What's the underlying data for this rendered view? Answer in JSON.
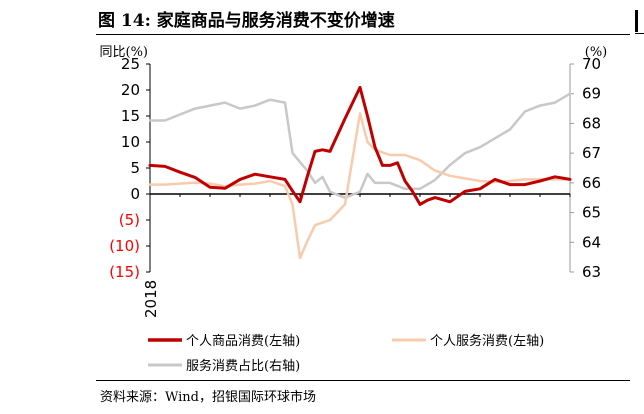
{
  "title": "图 14: 家庭商品与服务消费不变价增速",
  "source": "资料来源：Wind，招银国际环球市场",
  "chart_data": {
    "type": "line",
    "left_axis": {
      "unit_label": "同比(%)",
      "ylim": [
        -15,
        25
      ],
      "ticks": [
        25,
        20,
        15,
        10,
        5,
        0,
        -5,
        -10,
        -15
      ],
      "tick_labels": [
        "25",
        "20",
        "15",
        "10",
        "5",
        "0",
        "(5)",
        "(10)",
        "(15)"
      ]
    },
    "right_axis": {
      "unit_label": "(%)",
      "ylim": [
        63,
        70
      ],
      "ticks": [
        70,
        69,
        68,
        67,
        66,
        65,
        64,
        63
      ],
      "tick_labels": [
        "70",
        "69",
        "68",
        "67",
        "66",
        "65",
        "64",
        "63"
      ]
    },
    "x_label": "2018",
    "x_range": [
      0,
      56
    ],
    "series": [
      {
        "name": "个人商品消费(左轴)",
        "axis": "left",
        "color": "#C00000",
        "width": 3,
        "x": [
          0,
          2,
          4,
          6,
          8,
          10,
          12,
          14,
          16,
          18,
          19,
          20,
          21,
          22,
          23,
          24,
          26,
          28,
          29,
          30,
          31,
          32,
          33,
          34,
          35,
          36,
          37,
          38,
          40,
          42,
          44,
          46,
          48,
          50,
          52,
          54,
          56
        ],
        "values": [
          5.5,
          5.3,
          4.2,
          3.2,
          1.3,
          1.1,
          2.8,
          3.8,
          3.3,
          2.8,
          0.6,
          -1.5,
          3.5,
          8.2,
          8.5,
          8.2,
          14.5,
          20.5,
          15,
          9,
          5.5,
          5.5,
          6.0,
          2.5,
          0.5,
          -2.0,
          -1.2,
          -0.7,
          -1.5,
          0.5,
          1.0,
          2.8,
          1.8,
          1.8,
          2.5,
          3.3,
          2.8
        ]
      },
      {
        "name": "个人服务消费(左轴)",
        "axis": "left",
        "color": "#F8CBAD",
        "width": 2.5,
        "x": [
          0,
          2,
          4,
          6,
          8,
          10,
          12,
          14,
          16,
          18,
          19,
          20,
          21,
          22,
          23,
          24,
          26,
          28,
          29,
          30,
          32,
          34,
          36,
          38,
          40,
          42,
          44,
          46,
          48,
          50,
          52,
          54,
          56
        ],
        "values": [
          1.8,
          1.8,
          2.0,
          2.2,
          2.0,
          1.5,
          1.8,
          2.0,
          2.5,
          1.5,
          -2.0,
          -12.3,
          -9.0,
          -6.0,
          -5.5,
          -5.0,
          -2.0,
          15.5,
          10.0,
          8.5,
          7.5,
          7.5,
          6.5,
          4.5,
          3.5,
          3.0,
          2.5,
          2.3,
          2.5,
          2.8,
          2.8,
          2.8,
          2.8
        ]
      },
      {
        "name": "服务消费占比(右轴)",
        "axis": "right",
        "color": "#C8C8C8",
        "width": 2.5,
        "x": [
          0,
          2,
          4,
          6,
          8,
          10,
          12,
          14,
          16,
          18,
          19,
          20,
          21,
          22,
          23,
          24,
          26,
          28,
          29,
          30,
          32,
          34,
          36,
          38,
          40,
          42,
          44,
          46,
          48,
          50,
          52,
          54,
          56
        ],
        "values": [
          68.1,
          68.1,
          68.3,
          68.5,
          68.6,
          68.7,
          68.5,
          68.6,
          68.8,
          68.7,
          67.0,
          66.7,
          66.4,
          66.0,
          66.2,
          65.7,
          65.5,
          65.7,
          66.3,
          66.0,
          66.0,
          65.8,
          65.8,
          66.1,
          66.6,
          67.0,
          67.2,
          67.5,
          67.8,
          68.4,
          68.6,
          68.7,
          69.0
        ]
      }
    ],
    "legend": [
      "个人商品消费(左轴)",
      "个人服务消费(左轴)",
      "服务消费占比(右轴)"
    ],
    "legend_position": "bottom"
  }
}
